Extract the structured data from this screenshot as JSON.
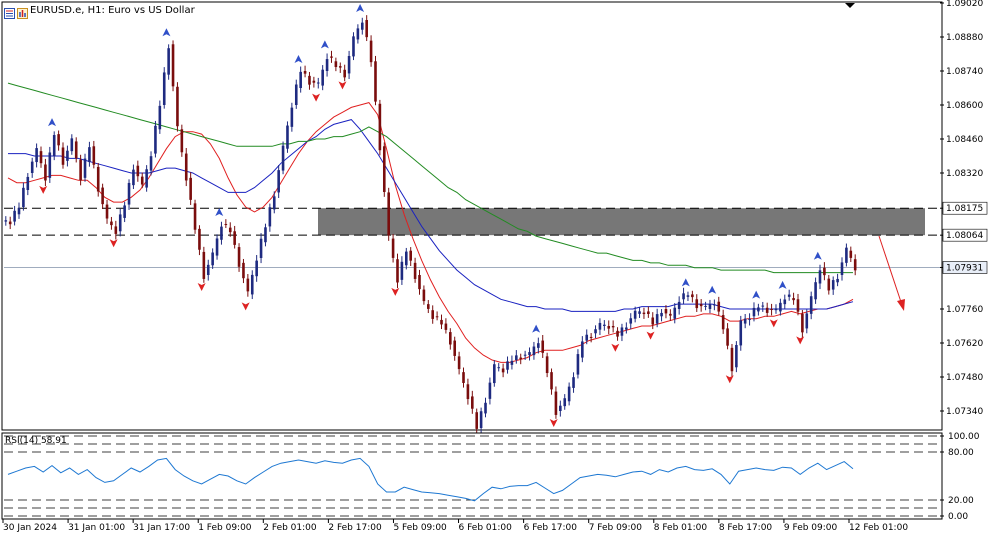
{
  "window": {
    "symbol_line": "EURUSD.e, H1:  Euro vs US Dollar"
  },
  "rsi_panel": {
    "title": "RSI(14) 58.91",
    "levels": [
      "100.00",
      "80.00",
      "20.00",
      "0.00"
    ],
    "color": "#1e78d2"
  },
  "colors": {
    "bull": "#1e2a80",
    "bear": "#7a0d0d",
    "ma_fast": "#e02020",
    "ma_mid": "#1a22c0",
    "ma_slow": "#228b22",
    "zone": "#777777",
    "arrow_up": "#3050c8",
    "arrow_down": "#dd2222"
  },
  "chart_data": {
    "type": "candlestick",
    "title": "EURUSD.e, H1:  Euro vs US Dollar",
    "y_ticks": [
      "1.09020",
      "1.08880",
      "1.08740",
      "1.08600",
      "1.08460",
      "1.08320",
      "1.08175",
      "1.08064",
      "1.07931",
      "1.07760",
      "1.07620",
      "1.07480",
      "1.07340"
    ],
    "x_ticks": [
      "30 Jan 2024",
      "31 Jan 01:00",
      "31 Jan 17:00",
      "1 Feb 09:00",
      "2 Feb 01:00",
      "2 Feb 17:00",
      "5 Feb 09:00",
      "6 Feb 01:00",
      "6 Feb 17:00",
      "7 Feb 09:00",
      "8 Feb 01:00",
      "8 Feb 17:00",
      "9 Feb 09:00",
      "12 Feb 01:00"
    ],
    "ylim": [
      1.0727,
      1.0902
    ],
    "levels": {
      "resistance_top": 1.08175,
      "resistance_bottom": 1.08064,
      "current_price": 1.07931
    },
    "closes": [
      1.0812,
      1.0818,
      1.0832,
      1.0841,
      1.083,
      1.0848,
      1.0837,
      1.0845,
      1.083,
      1.0843,
      1.0826,
      1.0812,
      1.0808,
      1.0819,
      1.0835,
      1.0826,
      1.084,
      1.086,
      1.0885,
      1.085,
      1.083,
      1.0809,
      1.079,
      1.0798,
      1.0811,
      1.0808,
      1.0795,
      1.0782,
      1.0797,
      1.081,
      1.0824,
      1.0842,
      1.086,
      1.0874,
      1.087,
      1.0868,
      1.088,
      1.0876,
      1.0873,
      1.0887,
      1.0895,
      1.0878,
      1.0843,
      1.0805,
      1.0788,
      1.08,
      1.079,
      1.0778,
      1.0773,
      1.077,
      1.0763,
      1.075,
      1.074,
      1.0727,
      1.0739,
      1.0752,
      1.0751,
      1.0755,
      1.0757,
      1.0757,
      1.0763,
      1.075,
      1.0734,
      1.0738,
      1.0749,
      1.0763,
      1.0766,
      1.0769,
      1.0769,
      1.0765,
      1.077,
      1.0774,
      1.0775,
      1.077,
      1.0776,
      1.0772,
      1.078,
      1.0782,
      1.0778,
      1.0776,
      1.0779,
      1.0768,
      1.0752,
      1.077,
      1.0773,
      1.0777,
      1.0776,
      1.0775,
      1.0781,
      1.078,
      1.0768,
      1.078,
      1.0793,
      1.0784,
      1.079,
      1.08,
      1.0793
    ],
    "series": [
      {
        "name": "",
        "role": "ma_fast",
        "values": [
          1.083,
          1.0828,
          1.0828,
          1.0829,
          1.083,
          1.0831,
          1.0831,
          1.083,
          1.0829,
          1.0829,
          1.0826,
          1.0822,
          1.082,
          1.082,
          1.0822,
          1.0825,
          1.083,
          1.0836,
          1.0842,
          1.0847,
          1.0849,
          1.0849,
          1.0848,
          1.0844,
          1.0838,
          1.083,
          1.0823,
          1.0818,
          1.0816,
          1.0818,
          1.0822,
          1.0828,
          1.0834,
          1.084,
          1.0845,
          1.0849,
          1.0852,
          1.0855,
          1.0857,
          1.0859,
          1.086,
          1.0861,
          1.0856,
          1.0842,
          1.0827,
          1.0815,
          1.0805,
          1.0796,
          1.0788,
          1.0781,
          1.0775,
          1.077,
          1.0764,
          1.076,
          1.0757,
          1.0755,
          1.0754,
          1.0754,
          1.0755,
          1.0756,
          1.0758,
          1.0759,
          1.0759,
          1.0759,
          1.076,
          1.0761,
          1.0763,
          1.0764,
          1.0765,
          1.0766,
          1.0767,
          1.0768,
          1.0769,
          1.0769,
          1.077,
          1.0771,
          1.0772,
          1.0773,
          1.0773,
          1.0774,
          1.0774,
          1.0773,
          1.0771,
          1.0771,
          1.0772,
          1.0772,
          1.0773,
          1.0773,
          1.0774,
          1.0775,
          1.0774,
          1.0775,
          1.0776,
          1.0776,
          1.0777,
          1.0778,
          1.078
        ]
      },
      {
        "name": "",
        "role": "ma_mid",
        "values": [
          1.084,
          1.084,
          1.084,
          1.0839,
          1.0839,
          1.0839,
          1.0839,
          1.0838,
          1.0838,
          1.0837,
          1.0836,
          1.0835,
          1.0834,
          1.0833,
          1.0832,
          1.0832,
          1.0832,
          1.0833,
          1.0834,
          1.0834,
          1.0833,
          1.0832,
          1.083,
          1.0828,
          1.0826,
          1.0824,
          1.0824,
          1.0824,
          1.0826,
          1.0829,
          1.0832,
          1.0836,
          1.0839,
          1.0842,
          1.0845,
          1.0847,
          1.085,
          1.0852,
          1.0853,
          1.0854,
          1.085,
          1.0845,
          1.084,
          1.0834,
          1.0828,
          1.0822,
          1.0816,
          1.081,
          1.0805,
          1.08,
          1.0796,
          1.0792,
          1.0789,
          1.0786,
          1.0784,
          1.0782,
          1.078,
          1.0779,
          1.0778,
          1.0777,
          1.0777,
          1.0776,
          1.0776,
          1.0776,
          1.0775,
          1.0775,
          1.0775,
          1.0775,
          1.0775,
          1.0775,
          1.0776,
          1.0776,
          1.0777,
          1.0777,
          1.0777,
          1.0777,
          1.0778,
          1.0778,
          1.0778,
          1.0778,
          1.0778,
          1.0777,
          1.0776,
          1.0776,
          1.0776,
          1.0776,
          1.0776,
          1.0776,
          1.0776,
          1.0776,
          1.0776,
          1.0776,
          1.0776,
          1.0776,
          1.0777,
          1.0778,
          1.0779
        ]
      },
      {
        "name": "",
        "role": "ma_slow",
        "values": [
          1.0869,
          1.0868,
          1.0867,
          1.0866,
          1.0865,
          1.0864,
          1.0863,
          1.0862,
          1.0861,
          1.086,
          1.0859,
          1.0858,
          1.0857,
          1.0856,
          1.0855,
          1.0854,
          1.0853,
          1.0852,
          1.0851,
          1.085,
          1.0849,
          1.0848,
          1.0847,
          1.0846,
          1.0845,
          1.0844,
          1.0843,
          1.0843,
          1.0843,
          1.0843,
          1.0843,
          1.0844,
          1.0844,
          1.0845,
          1.0845,
          1.0846,
          1.0846,
          1.0847,
          1.0847,
          1.0848,
          1.0849,
          1.0851,
          1.0849,
          1.0847,
          1.0844,
          1.0841,
          1.0838,
          1.0835,
          1.0832,
          1.0829,
          1.0826,
          1.0824,
          1.0821,
          1.0819,
          1.0817,
          1.0815,
          1.0813,
          1.0811,
          1.0809,
          1.0808,
          1.0806,
          1.0805,
          1.0804,
          1.0803,
          1.0802,
          1.0801,
          1.08,
          1.0799,
          1.0799,
          1.0798,
          1.0797,
          1.0796,
          1.0796,
          1.0795,
          1.0795,
          1.0794,
          1.0794,
          1.0794,
          1.0793,
          1.0793,
          1.0793,
          1.0792,
          1.0792,
          1.0792,
          1.0792,
          1.0792,
          1.0792,
          1.0791,
          1.0791,
          1.0791,
          1.0791,
          1.0791,
          1.0791,
          1.0791,
          1.0791,
          1.0791,
          1.0791
        ]
      },
      {
        "name": "",
        "role": "rsi",
        "values": [
          52,
          56,
          60,
          62,
          55,
          63,
          54,
          60,
          52,
          58,
          48,
          42,
          44,
          52,
          60,
          55,
          62,
          70,
          72,
          58,
          50,
          44,
          40,
          46,
          52,
          50,
          44,
          40,
          48,
          55,
          62,
          66,
          68,
          70,
          68,
          66,
          69,
          67,
          66,
          70,
          72,
          62,
          40,
          30,
          30,
          36,
          33,
          30,
          29,
          28,
          26,
          24,
          22,
          19,
          28,
          36,
          34,
          37,
          38,
          38,
          42,
          35,
          28,
          32,
          40,
          48,
          50,
          52,
          51,
          49,
          52,
          55,
          56,
          52,
          58,
          55,
          60,
          62,
          58,
          57,
          59,
          52,
          40,
          56,
          58,
          60,
          58,
          57,
          61,
          60,
          52,
          60,
          66,
          58,
          63,
          68,
          59
        ]
      }
    ]
  }
}
